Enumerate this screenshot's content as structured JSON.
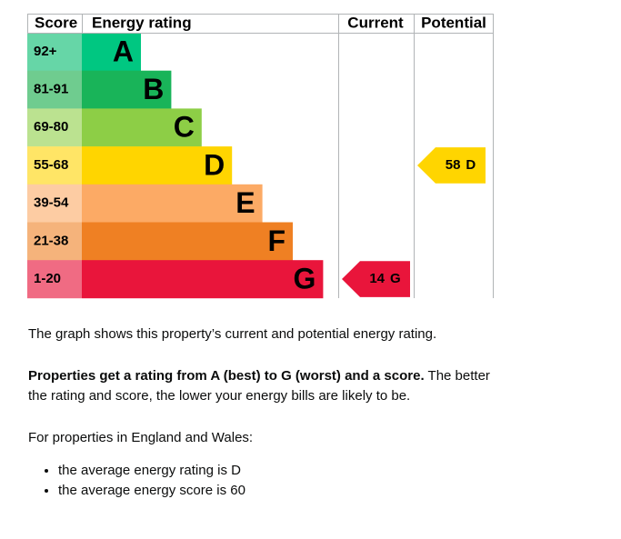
{
  "header": {
    "score": "Score",
    "rating": "Energy rating",
    "current": "Current",
    "potential": "Potential"
  },
  "bands": [
    {
      "range": "92+",
      "letter": "A",
      "color": "#00c781",
      "light": "#66d6a7"
    },
    {
      "range": "81-91",
      "letter": "B",
      "color": "#19b459",
      "light": "#6fcc8f"
    },
    {
      "range": "69-80",
      "letter": "C",
      "color": "#8dce46",
      "light": "#bbe290"
    },
    {
      "range": "55-68",
      "letter": "D",
      "color": "#ffd500",
      "light": "#ffe566"
    },
    {
      "range": "39-54",
      "letter": "E",
      "color": "#fcaa65",
      "light": "#fdcca3"
    },
    {
      "range": "21-38",
      "letter": "F",
      "color": "#ef8023",
      "light": "#f5b37b"
    },
    {
      "range": "1-20",
      "letter": "G",
      "color": "#e9153b",
      "light": "#f06b83"
    }
  ],
  "current": {
    "score": 14,
    "rating": "G"
  },
  "potential": {
    "score": 58,
    "rating": "D"
  },
  "text": {
    "intro": "The graph shows this property’s current and potential energy rating.",
    "bold": "Properties get a rating from A (best) to G (worst) and a score.",
    "rest": "The better the rating and score, the lower your energy bills are likely to be.",
    "wales": "For properties in England and Wales:",
    "bullets": [
      "the average energy rating is D",
      "the average energy score is 60"
    ]
  }
}
